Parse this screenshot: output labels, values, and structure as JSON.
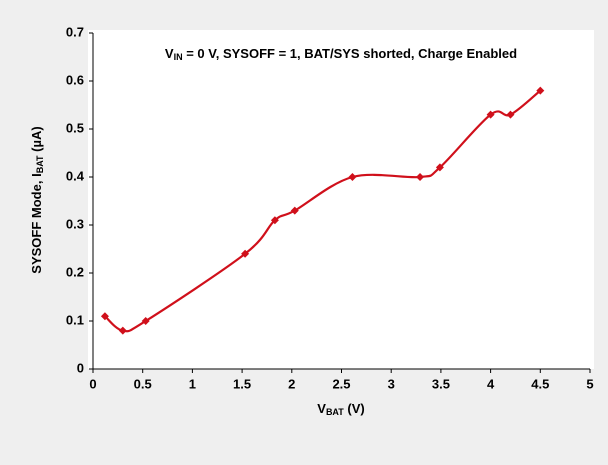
{
  "chart_data": {
    "type": "line",
    "annotation": [
      {
        "text": "V"
      },
      {
        "text": "IN",
        "sub": true
      },
      {
        "text": " = 0 V, SYSOFF = 1, BAT/SYS shorted, Charge Enabled"
      }
    ],
    "x_label": [
      {
        "text": "V"
      },
      {
        "text": "BAT",
        "sub": true
      },
      {
        "text": " (V)"
      }
    ],
    "y_label": [
      {
        "text": "SYSOFF Mode, I"
      },
      {
        "text": "BAT",
        "sub": true
      },
      {
        "text": " (µA)"
      }
    ],
    "x": [
      0.12,
      0.3,
      0.53,
      1.53,
      1.83,
      2.03,
      2.61,
      3.29,
      3.49,
      4.0,
      4.2,
      4.5
    ],
    "series": [
      {
        "name": "IBAT",
        "color": "#d0101b",
        "values": [
          0.11,
          0.08,
          0.1,
          0.24,
          0.31,
          0.33,
          0.4,
          0.4,
          0.42,
          0.53,
          0.53,
          0.58
        ]
      }
    ],
    "xlim": [
      0,
      5
    ],
    "xticks": [
      0,
      0.5,
      1,
      1.5,
      2,
      2.5,
      3,
      3.5,
      4,
      4.5,
      5
    ],
    "ylim": [
      0,
      0.7
    ],
    "yticks": [
      0,
      0.1,
      0.2,
      0.3,
      0.4,
      0.5,
      0.6,
      0.7
    ],
    "smooth": true
  }
}
